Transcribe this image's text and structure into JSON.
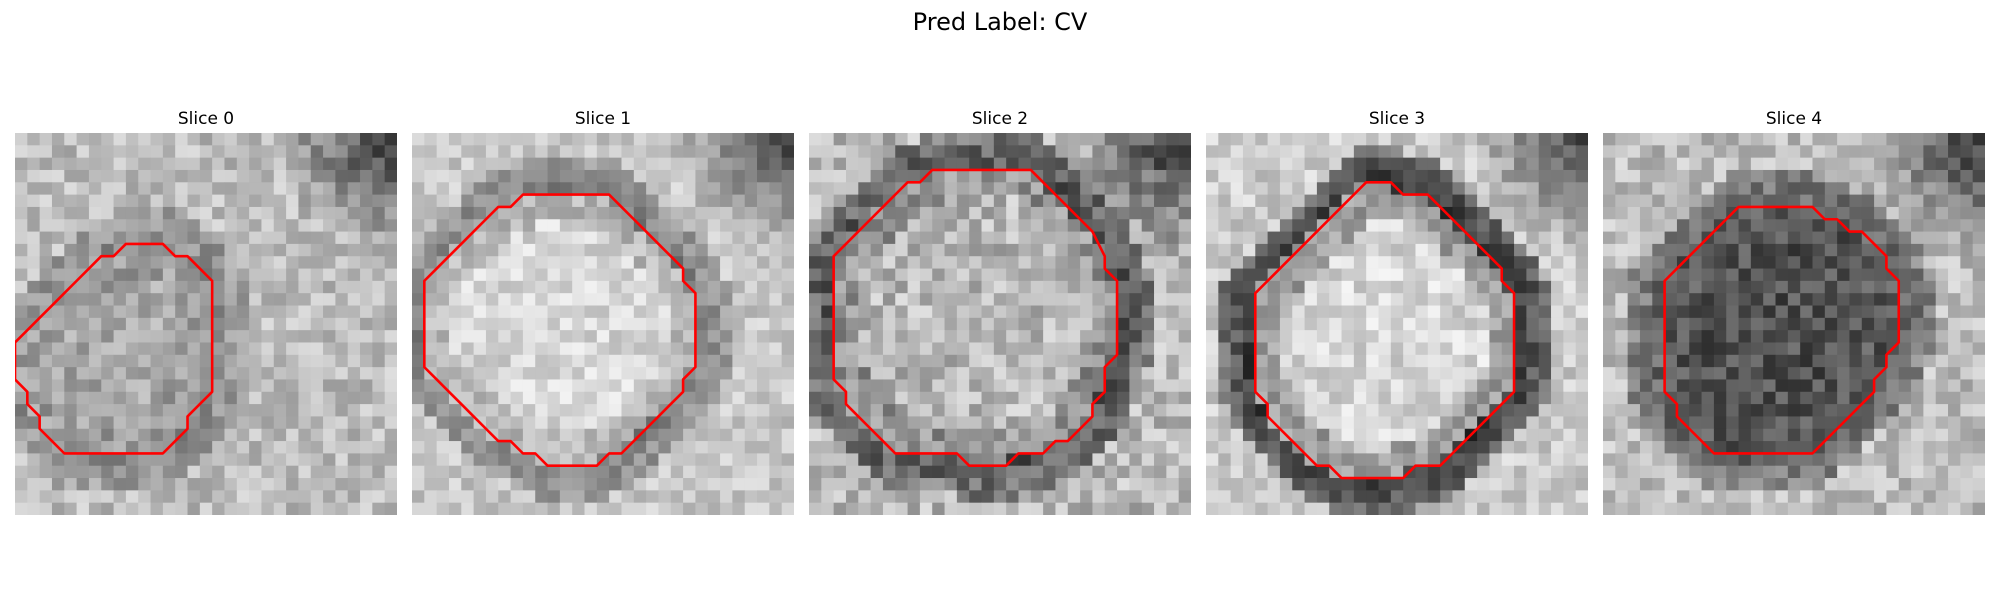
{
  "figure": {
    "suptitle": "Pred Label: CV"
  },
  "slices": [
    {
      "title": "Slice 0",
      "overlay_color": "#ff0000",
      "appearance": {
        "background_level": 0.74,
        "ring_level": 0.55,
        "center_level": 0.66,
        "dark_corner": "top-right",
        "noise": 0.13
      },
      "contour": [
        [
          11,
          9
        ],
        [
          12,
          9
        ],
        [
          13,
          10
        ],
        [
          14,
          10
        ],
        [
          15,
          11
        ],
        [
          16,
          12
        ],
        [
          16,
          13
        ],
        [
          16,
          14
        ],
        [
          16,
          15
        ],
        [
          16,
          16
        ],
        [
          16,
          17
        ],
        [
          16,
          18
        ],
        [
          16,
          19
        ],
        [
          16,
          20
        ],
        [
          16,
          21
        ],
        [
          15,
          22
        ],
        [
          14,
          23
        ],
        [
          14,
          24
        ],
        [
          13,
          25
        ],
        [
          12,
          26
        ],
        [
          11,
          26
        ],
        [
          10,
          26
        ],
        [
          9,
          26
        ],
        [
          8,
          26
        ],
        [
          7,
          26
        ],
        [
          6,
          26
        ],
        [
          5,
          26
        ],
        [
          4,
          26
        ],
        [
          3,
          25
        ],
        [
          2,
          24
        ],
        [
          2,
          23
        ],
        [
          1,
          22
        ],
        [
          1,
          21
        ],
        [
          0,
          20
        ],
        [
          0,
          19
        ],
        [
          0,
          18
        ],
        [
          0,
          17
        ],
        [
          1,
          16
        ],
        [
          2,
          15
        ],
        [
          3,
          14
        ],
        [
          4,
          13
        ],
        [
          5,
          12
        ],
        [
          6,
          11
        ],
        [
          7,
          10
        ],
        [
          8,
          10
        ],
        [
          9,
          9
        ],
        [
          10,
          9
        ],
        [
          11,
          9
        ]
      ]
    },
    {
      "title": "Slice 1",
      "overlay_color": "#ff0000",
      "appearance": {
        "background_level": 0.78,
        "ring_level": 0.5,
        "center_level": 0.84,
        "dark_corner": "top-right",
        "noise": 0.11
      },
      "contour": [
        [
          12,
          5
        ],
        [
          13,
          5
        ],
        [
          14,
          5
        ],
        [
          15,
          5
        ],
        [
          16,
          5
        ],
        [
          17,
          6
        ],
        [
          18,
          7
        ],
        [
          19,
          8
        ],
        [
          20,
          9
        ],
        [
          21,
          10
        ],
        [
          22,
          11
        ],
        [
          22,
          12
        ],
        [
          23,
          13
        ],
        [
          23,
          14
        ],
        [
          23,
          15
        ],
        [
          23,
          16
        ],
        [
          23,
          17
        ],
        [
          23,
          18
        ],
        [
          23,
          19
        ],
        [
          22,
          20
        ],
        [
          22,
          21
        ],
        [
          21,
          22
        ],
        [
          20,
          23
        ],
        [
          19,
          24
        ],
        [
          18,
          25
        ],
        [
          17,
          26
        ],
        [
          16,
          26
        ],
        [
          15,
          27
        ],
        [
          14,
          27
        ],
        [
          13,
          27
        ],
        [
          12,
          27
        ],
        [
          11,
          27
        ],
        [
          10,
          26
        ],
        [
          9,
          26
        ],
        [
          8,
          25
        ],
        [
          7,
          25
        ],
        [
          6,
          24
        ],
        [
          5,
          23
        ],
        [
          4,
          22
        ],
        [
          3,
          21
        ],
        [
          2,
          20
        ],
        [
          1,
          19
        ],
        [
          1,
          18
        ],
        [
          1,
          17
        ],
        [
          1,
          16
        ],
        [
          1,
          15
        ],
        [
          1,
          14
        ],
        [
          1,
          13
        ],
        [
          1,
          12
        ],
        [
          2,
          11
        ],
        [
          3,
          10
        ],
        [
          4,
          9
        ],
        [
          5,
          8
        ],
        [
          6,
          7
        ],
        [
          7,
          6
        ],
        [
          8,
          6
        ],
        [
          9,
          5
        ],
        [
          10,
          5
        ],
        [
          11,
          5
        ],
        [
          12,
          5
        ]
      ]
    },
    {
      "title": "Slice 2",
      "overlay_color": "#ff0000",
      "appearance": {
        "background_level": 0.72,
        "ring_level": 0.32,
        "center_level": 0.72,
        "dark_corner": "top-right",
        "noise": 0.16
      },
      "contour": [
        [
          15,
          3
        ],
        [
          16,
          3
        ],
        [
          17,
          3
        ],
        [
          18,
          3
        ],
        [
          19,
          4
        ],
        [
          20,
          5
        ],
        [
          21,
          6
        ],
        [
          22,
          7
        ],
        [
          23,
          8
        ],
        [
          24,
          10
        ],
        [
          24,
          11
        ],
        [
          25,
          12
        ],
        [
          25,
          13
        ],
        [
          25,
          14
        ],
        [
          25,
          15
        ],
        [
          25,
          16
        ],
        [
          25,
          17
        ],
        [
          25,
          18
        ],
        [
          24,
          19
        ],
        [
          24,
          20
        ],
        [
          24,
          21
        ],
        [
          23,
          22
        ],
        [
          23,
          23
        ],
        [
          22,
          24
        ],
        [
          21,
          25
        ],
        [
          20,
          25
        ],
        [
          19,
          26
        ],
        [
          18,
          26
        ],
        [
          17,
          26
        ],
        [
          16,
          27
        ],
        [
          15,
          27
        ],
        [
          14,
          27
        ],
        [
          13,
          27
        ],
        [
          12,
          26
        ],
        [
          11,
          26
        ],
        [
          10,
          26
        ],
        [
          9,
          26
        ],
        [
          8,
          26
        ],
        [
          7,
          26
        ],
        [
          6,
          25
        ],
        [
          5,
          24
        ],
        [
          4,
          23
        ],
        [
          3,
          22
        ],
        [
          3,
          21
        ],
        [
          2,
          20
        ],
        [
          2,
          19
        ],
        [
          2,
          18
        ],
        [
          2,
          17
        ],
        [
          2,
          16
        ],
        [
          2,
          15
        ],
        [
          2,
          14
        ],
        [
          2,
          13
        ],
        [
          2,
          12
        ],
        [
          2,
          11
        ],
        [
          2,
          10
        ],
        [
          3,
          9
        ],
        [
          4,
          8
        ],
        [
          5,
          7
        ],
        [
          6,
          6
        ],
        [
          7,
          5
        ],
        [
          8,
          4
        ],
        [
          9,
          4
        ],
        [
          10,
          3
        ],
        [
          11,
          3
        ],
        [
          12,
          3
        ],
        [
          13,
          3
        ],
        [
          14,
          3
        ],
        [
          15,
          3
        ]
      ]
    },
    {
      "title": "Slice 3",
      "overlay_color": "#ff0000",
      "appearance": {
        "background_level": 0.8,
        "ring_level": 0.2,
        "center_level": 0.84,
        "dark_corner": "top-right",
        "noise": 0.12
      },
      "contour": [
        [
          14,
          4
        ],
        [
          15,
          4
        ],
        [
          16,
          5
        ],
        [
          17,
          5
        ],
        [
          18,
          5
        ],
        [
          19,
          6
        ],
        [
          20,
          7
        ],
        [
          21,
          8
        ],
        [
          22,
          9
        ],
        [
          23,
          10
        ],
        [
          24,
          11
        ],
        [
          24,
          12
        ],
        [
          25,
          13
        ],
        [
          25,
          14
        ],
        [
          25,
          15
        ],
        [
          25,
          16
        ],
        [
          25,
          17
        ],
        [
          25,
          18
        ],
        [
          25,
          19
        ],
        [
          25,
          20
        ],
        [
          25,
          21
        ],
        [
          24,
          22
        ],
        [
          23,
          23
        ],
        [
          22,
          24
        ],
        [
          21,
          25
        ],
        [
          20,
          26
        ],
        [
          19,
          27
        ],
        [
          18,
          27
        ],
        [
          17,
          27
        ],
        [
          16,
          28
        ],
        [
          15,
          28
        ],
        [
          14,
          28
        ],
        [
          13,
          28
        ],
        [
          12,
          28
        ],
        [
          11,
          28
        ],
        [
          10,
          27
        ],
        [
          9,
          27
        ],
        [
          8,
          26
        ],
        [
          7,
          25
        ],
        [
          6,
          24
        ],
        [
          5,
          23
        ],
        [
          5,
          22
        ],
        [
          4,
          21
        ],
        [
          4,
          20
        ],
        [
          4,
          19
        ],
        [
          4,
          18
        ],
        [
          4,
          17
        ],
        [
          4,
          16
        ],
        [
          4,
          15
        ],
        [
          4,
          14
        ],
        [
          4,
          13
        ],
        [
          5,
          12
        ],
        [
          6,
          11
        ],
        [
          7,
          10
        ],
        [
          8,
          9
        ],
        [
          9,
          8
        ],
        [
          10,
          7
        ],
        [
          11,
          6
        ],
        [
          12,
          5
        ],
        [
          13,
          4
        ],
        [
          14,
          4
        ]
      ]
    },
    {
      "title": "Slice 4",
      "overlay_color": "#ff0000",
      "appearance": {
        "background_level": 0.74,
        "ring_level": 0.38,
        "center_level": 0.32,
        "dark_corner": "top-right",
        "noise": 0.14
      },
      "contour": [
        [
          14,
          6
        ],
        [
          15,
          6
        ],
        [
          16,
          6
        ],
        [
          17,
          6
        ],
        [
          18,
          7
        ],
        [
          19,
          7
        ],
        [
          20,
          8
        ],
        [
          21,
          8
        ],
        [
          22,
          9
        ],
        [
          23,
          10
        ],
        [
          23,
          11
        ],
        [
          24,
          12
        ],
        [
          24,
          13
        ],
        [
          24,
          14
        ],
        [
          24,
          15
        ],
        [
          24,
          16
        ],
        [
          24,
          17
        ],
        [
          23,
          18
        ],
        [
          23,
          19
        ],
        [
          22,
          20
        ],
        [
          22,
          21
        ],
        [
          21,
          22
        ],
        [
          20,
          23
        ],
        [
          19,
          24
        ],
        [
          18,
          25
        ],
        [
          17,
          26
        ],
        [
          16,
          26
        ],
        [
          15,
          26
        ],
        [
          14,
          26
        ],
        [
          13,
          26
        ],
        [
          12,
          26
        ],
        [
          11,
          26
        ],
        [
          10,
          26
        ],
        [
          9,
          26
        ],
        [
          8,
          25
        ],
        [
          7,
          24
        ],
        [
          6,
          23
        ],
        [
          6,
          22
        ],
        [
          5,
          21
        ],
        [
          5,
          20
        ],
        [
          5,
          19
        ],
        [
          5,
          18
        ],
        [
          5,
          17
        ],
        [
          5,
          16
        ],
        [
          5,
          15
        ],
        [
          5,
          14
        ],
        [
          5,
          13
        ],
        [
          5,
          12
        ],
        [
          6,
          11
        ],
        [
          7,
          10
        ],
        [
          8,
          9
        ],
        [
          9,
          8
        ],
        [
          10,
          7
        ],
        [
          11,
          6
        ],
        [
          12,
          6
        ],
        [
          13,
          6
        ],
        [
          14,
          6
        ]
      ]
    }
  ]
}
